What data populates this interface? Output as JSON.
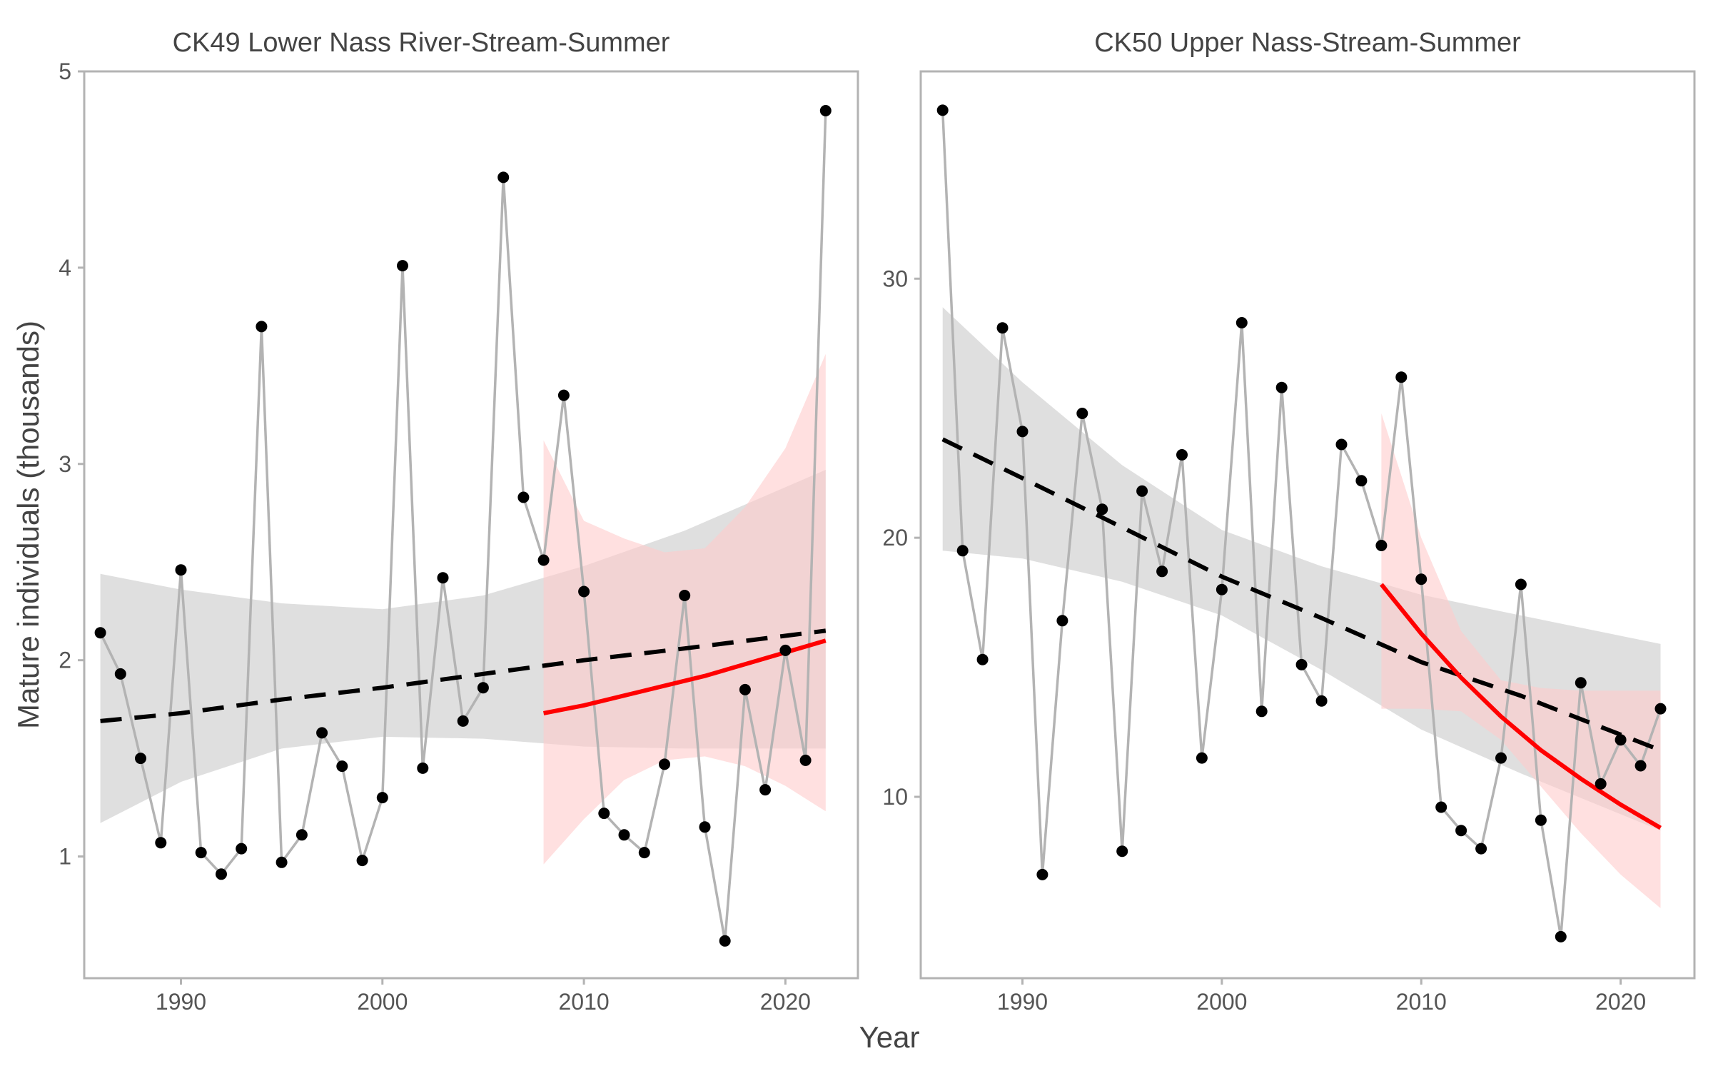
{
  "figure": {
    "xlabel": "Year",
    "ylabel": "Mature individuals (thousands)"
  },
  "colors": {
    "observed_line": "#b3b3b3",
    "points": "#000000",
    "long_trend": "#000000",
    "long_band": "#d9d9d9",
    "recent_trend": "#ff0000",
    "recent_band": "#ffcccc",
    "frame": "#b3b3b3"
  },
  "chart_data": [
    {
      "type": "line",
      "title": "CK49 Lower Nass River-Stream-Summer",
      "x": [
        1986,
        1987,
        1988,
        1989,
        1990,
        1991,
        1992,
        1993,
        1994,
        1995,
        1996,
        1997,
        1998,
        1999,
        2000,
        2001,
        2002,
        2003,
        2004,
        2005,
        2006,
        2007,
        2008,
        2009,
        2010,
        2011,
        2012,
        2013,
        2014,
        2015,
        2016,
        2017,
        2018,
        2019,
        2020,
        2021,
        2022
      ],
      "values": [
        2.14,
        1.93,
        1.5,
        1.07,
        2.46,
        1.02,
        0.91,
        1.04,
        3.7,
        0.97,
        1.11,
        1.63,
        1.46,
        0.98,
        1.3,
        4.01,
        1.45,
        2.42,
        1.69,
        1.86,
        4.46,
        2.83,
        2.51,
        3.35,
        2.35,
        1.22,
        1.11,
        1.02,
        1.47,
        2.33,
        1.15,
        0.57,
        1.85,
        1.34,
        2.05,
        1.49,
        4.8
      ],
      "xlim": [
        1985.2,
        2023.6
      ],
      "ylim": [
        0.38,
        5.0
      ],
      "xticks": [
        "1990",
        "2000",
        "2010",
        "2020"
      ],
      "yticks": [
        "1",
        "2",
        "3",
        "4",
        "5"
      ],
      "long_trend": {
        "x": [
          1986,
          1990,
          1995,
          2000,
          2005,
          2010,
          2015,
          2022
        ],
        "fit": [
          1.69,
          1.73,
          1.8,
          1.86,
          1.93,
          2.0,
          2.06,
          2.15
        ],
        "lower": [
          1.17,
          1.38,
          1.55,
          1.61,
          1.6,
          1.56,
          1.55,
          1.55
        ],
        "upper": [
          2.44,
          2.36,
          2.29,
          2.26,
          2.33,
          2.48,
          2.66,
          2.97
        ]
      },
      "recent_trend": {
        "x": [
          2008,
          2010,
          2012,
          2014,
          2016,
          2018,
          2020,
          2022
        ],
        "fit": [
          1.73,
          1.77,
          1.82,
          1.87,
          1.92,
          1.98,
          2.04,
          2.1
        ],
        "lower": [
          0.96,
          1.19,
          1.39,
          1.49,
          1.51,
          1.46,
          1.36,
          1.23
        ],
        "upper": [
          3.12,
          2.71,
          2.62,
          2.55,
          2.57,
          2.78,
          3.08,
          3.56
        ]
      }
    },
    {
      "type": "line",
      "title": "CK50 Upper Nass-Stream-Summer",
      "x": [
        1986,
        1987,
        1988,
        1989,
        1990,
        1991,
        1992,
        1993,
        1994,
        1995,
        1996,
        1997,
        1998,
        1999,
        2000,
        2001,
        2002,
        2003,
        2004,
        2005,
        2006,
        2007,
        2008,
        2009,
        2010,
        2011,
        2012,
        2013,
        2014,
        2015,
        2016,
        2017,
        2018,
        2019,
        2020,
        2021,
        2022
      ],
      "values": [
        36.5,
        19.5,
        15.3,
        28.1,
        24.1,
        7.0,
        16.8,
        24.8,
        21.1,
        7.9,
        21.8,
        18.7,
        23.2,
        11.5,
        18.0,
        28.3,
        13.3,
        25.8,
        15.1,
        13.7,
        23.6,
        22.2,
        19.7,
        26.2,
        18.4,
        9.6,
        8.7,
        8.0,
        11.5,
        18.2,
        9.1,
        4.6,
        14.4,
        10.5,
        12.2,
        11.2,
        13.4
      ],
      "xlim": [
        1984.9,
        2023.7
      ],
      "ylim": [
        3.0,
        38.0
      ],
      "xticks": [
        "1990",
        "2000",
        "2010",
        "2020"
      ],
      "yticks": [
        "10",
        "20",
        "30"
      ],
      "long_trend": {
        "x": [
          1986,
          1990,
          1995,
          2000,
          2005,
          2010,
          2015,
          2022
        ],
        "fit": [
          23.8,
          22.3,
          20.4,
          18.5,
          16.9,
          15.2,
          13.9,
          11.8
        ],
        "lower": [
          19.5,
          19.2,
          18.3,
          17.0,
          14.9,
          12.6,
          10.9,
          8.7
        ],
        "upper": [
          28.9,
          26.0,
          22.8,
          20.3,
          18.9,
          17.8,
          17.0,
          15.9
        ]
      },
      "recent_trend": {
        "x": [
          2008,
          2010,
          2012,
          2014,
          2016,
          2018,
          2020,
          2022
        ],
        "fit": [
          18.2,
          16.3,
          14.6,
          13.1,
          11.8,
          10.7,
          9.7,
          8.8
        ],
        "lower": [
          13.4,
          13.4,
          13.3,
          12.2,
          10.4,
          8.6,
          7.0,
          5.7
        ],
        "upper": [
          24.8,
          20.0,
          16.4,
          14.5,
          14.2,
          14.1,
          14.1,
          14.1
        ]
      }
    }
  ]
}
